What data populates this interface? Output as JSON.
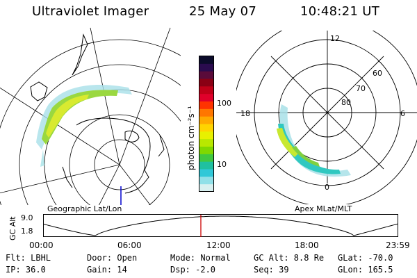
{
  "header": {
    "instrument": "Ultraviolet Imager",
    "date": "25 May 07",
    "time": "10:48:21 UT"
  },
  "colorbar": {
    "unit_label": "photon cm⁻²s⁻¹",
    "ticks": [
      "100",
      "10"
    ],
    "colors": [
      "#0b0b2a",
      "#2a0b4e",
      "#5a0b3a",
      "#8a0014",
      "#c00018",
      "#e0002a",
      "#ff3300",
      "#ff7700",
      "#ffaa00",
      "#ffd400",
      "#e8f000",
      "#b8e800",
      "#80d800",
      "#40c840",
      "#20c0a0",
      "#30c8d8",
      "#90e0e8",
      "#d8f0f0"
    ]
  },
  "geo_map": {
    "label": "Geographic Lat/Lon"
  },
  "apex_map": {
    "label": "Apex MLat/MLT",
    "mlt_labels": {
      "top": "12",
      "left": "18",
      "right": "6",
      "bottom": "0"
    },
    "lat_labels": [
      "60",
      "70",
      "80"
    ]
  },
  "timeline": {
    "axis_title": "GC Alt",
    "y_ticks": {
      "max": "9.0",
      "min": "1.8"
    },
    "x_ticks": [
      "00:00",
      "06:00",
      "12:00",
      "18:00",
      "23:59"
    ],
    "marker_color": "#cc0000"
  },
  "info": {
    "filter": "Flt: LBHL",
    "ip": "IP: 36.0",
    "door": "Door: Open",
    "gain": "Gain: 14",
    "mode": "Mode: Normal",
    "dsp": "Dsp:    -2.0",
    "gc_alt": "GC Alt: 8.8 Re",
    "seq": "Seq: 39",
    "glat": "GLat: -70.0",
    "glon": "GLon: 165.5"
  }
}
